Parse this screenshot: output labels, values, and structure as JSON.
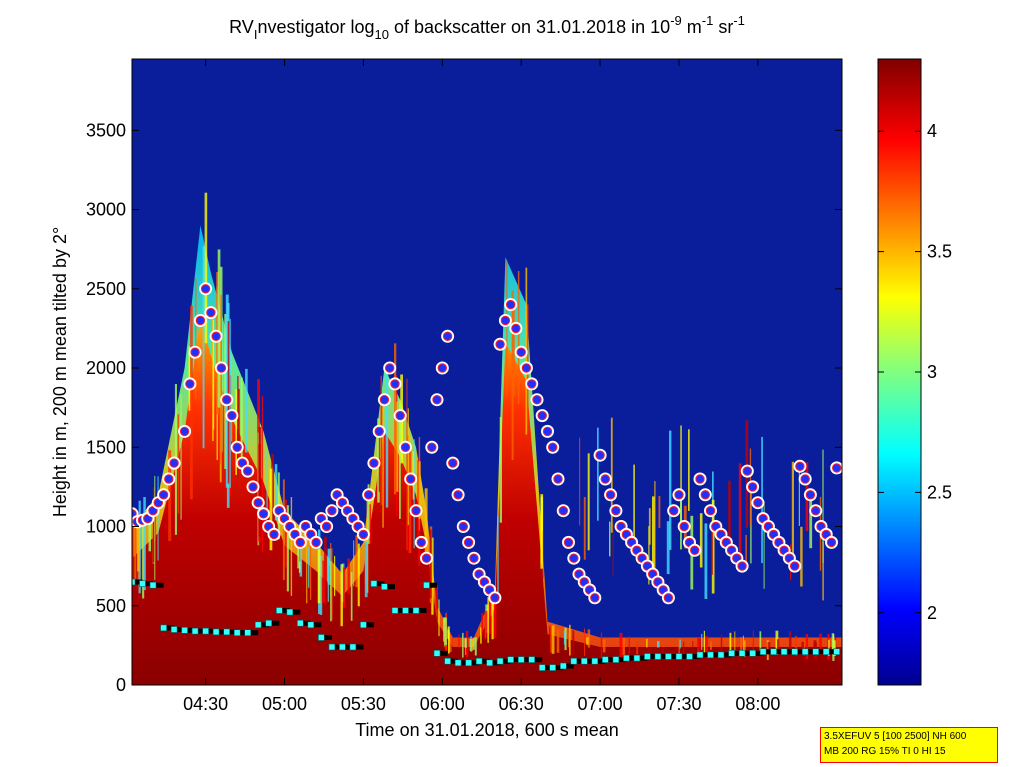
{
  "chart_data": {
    "type": "heatmap",
    "title": {
      "prefix": "RV",
      "prefix_sub": "I",
      "part1": "nvestigator log",
      "part1_sub": "10",
      "part2": " of backscatter on 31.01.2018 in 10",
      "exp1": "-9",
      "part3": " m",
      "exp2": "-1",
      "part4": " sr",
      "exp3": "-1"
    },
    "xlabel": "Time on 31.01.2018, 600 s mean",
    "ylabel": "Height in m, 200 m mean tilted by 2°",
    "x_ticks": [
      "04:30",
      "05:00",
      "05:30",
      "06:00",
      "06:30",
      "07:00",
      "07:30",
      "08:00"
    ],
    "x_tick_minutes": [
      270,
      300,
      330,
      360,
      390,
      420,
      450,
      480
    ],
    "xlim_minutes": [
      242,
      512
    ],
    "y_ticks": [
      0,
      500,
      1000,
      1500,
      2000,
      2500,
      3000,
      3500
    ],
    "ylim": [
      0,
      3950
    ],
    "colorbar": {
      "ticks": [
        2,
        2.5,
        3,
        3.5,
        4
      ],
      "tick_labels": [
        "2",
        "2.5",
        "3",
        "3.5",
        "4"
      ],
      "range": [
        1.7,
        4.3
      ],
      "colormap": "jet"
    },
    "background_color": "#0a1e9c",
    "cloud_base_points": [
      [
        242,
        1080
      ],
      [
        244,
        1030
      ],
      [
        246,
        1040
      ],
      [
        248,
        1050
      ],
      [
        250,
        1100
      ],
      [
        252,
        1150
      ],
      [
        254,
        1200
      ],
      [
        256,
        1300
      ],
      [
        258,
        1400
      ],
      [
        262,
        1600
      ],
      [
        264,
        1900
      ],
      [
        266,
        2100
      ],
      [
        268,
        2300
      ],
      [
        270,
        2500
      ],
      [
        272,
        2350
      ],
      [
        274,
        2200
      ],
      [
        276,
        2000
      ],
      [
        278,
        1800
      ],
      [
        280,
        1700
      ],
      [
        282,
        1500
      ],
      [
        284,
        1400
      ],
      [
        286,
        1350
      ],
      [
        288,
        1250
      ],
      [
        290,
        1150
      ],
      [
        292,
        1080
      ],
      [
        294,
        1000
      ],
      [
        296,
        950
      ],
      [
        298,
        1100
      ],
      [
        300,
        1050
      ],
      [
        302,
        1000
      ],
      [
        304,
        950
      ],
      [
        306,
        900
      ],
      [
        308,
        1000
      ],
      [
        310,
        950
      ],
      [
        312,
        900
      ],
      [
        314,
        1050
      ],
      [
        316,
        1000
      ],
      [
        318,
        1100
      ],
      [
        320,
        1200
      ],
      [
        322,
        1150
      ],
      [
        324,
        1100
      ],
      [
        326,
        1050
      ],
      [
        328,
        1000
      ],
      [
        330,
        950
      ],
      [
        332,
        1200
      ],
      [
        334,
        1400
      ],
      [
        336,
        1600
      ],
      [
        338,
        1800
      ],
      [
        340,
        2000
      ],
      [
        342,
        1900
      ],
      [
        344,
        1700
      ],
      [
        346,
        1500
      ],
      [
        348,
        1300
      ],
      [
        350,
        1100
      ],
      [
        352,
        900
      ],
      [
        354,
        800
      ],
      [
        356,
        1500
      ],
      [
        358,
        1800
      ],
      [
        360,
        2000
      ],
      [
        362,
        2200
      ],
      [
        364,
        1400
      ],
      [
        366,
        1200
      ],
      [
        368,
        1000
      ],
      [
        370,
        900
      ],
      [
        372,
        800
      ],
      [
        374,
        700
      ],
      [
        376,
        650
      ],
      [
        378,
        600
      ],
      [
        380,
        550
      ],
      [
        382,
        2150
      ],
      [
        384,
        2300
      ],
      [
        386,
        2400
      ],
      [
        388,
        2250
      ],
      [
        390,
        2100
      ],
      [
        392,
        2000
      ],
      [
        394,
        1900
      ],
      [
        396,
        1800
      ],
      [
        398,
        1700
      ],
      [
        400,
        1600
      ],
      [
        402,
        1500
      ],
      [
        404,
        1300
      ],
      [
        406,
        1100
      ],
      [
        408,
        900
      ],
      [
        410,
        800
      ],
      [
        412,
        700
      ],
      [
        414,
        650
      ],
      [
        416,
        600
      ],
      [
        418,
        550
      ],
      [
        420,
        1450
      ],
      [
        422,
        1300
      ],
      [
        424,
        1200
      ],
      [
        426,
        1100
      ],
      [
        428,
        1000
      ],
      [
        430,
        950
      ],
      [
        432,
        900
      ],
      [
        434,
        850
      ],
      [
        436,
        800
      ],
      [
        438,
        750
      ],
      [
        440,
        700
      ],
      [
        442,
        650
      ],
      [
        444,
        600
      ],
      [
        446,
        550
      ],
      [
        448,
        1100
      ],
      [
        450,
        1200
      ],
      [
        452,
        1000
      ],
      [
        454,
        900
      ],
      [
        456,
        850
      ],
      [
        458,
        1300
      ],
      [
        460,
        1200
      ],
      [
        462,
        1100
      ],
      [
        464,
        1000
      ],
      [
        466,
        950
      ],
      [
        468,
        900
      ],
      [
        470,
        850
      ],
      [
        472,
        800
      ],
      [
        474,
        750
      ],
      [
        476,
        1350
      ],
      [
        478,
        1250
      ],
      [
        480,
        1150
      ],
      [
        482,
        1050
      ],
      [
        484,
        1000
      ],
      [
        486,
        950
      ],
      [
        488,
        900
      ],
      [
        490,
        850
      ],
      [
        492,
        800
      ],
      [
        494,
        750
      ],
      [
        496,
        1380
      ],
      [
        498,
        1300
      ],
      [
        500,
        1200
      ],
      [
        502,
        1100
      ],
      [
        504,
        1000
      ],
      [
        506,
        950
      ],
      [
        508,
        900
      ],
      [
        510,
        1370
      ]
    ],
    "boundary_layer_points": [
      [
        242,
        650
      ],
      [
        246,
        640
      ],
      [
        250,
        630
      ],
      [
        254,
        360
      ],
      [
        258,
        350
      ],
      [
        262,
        345
      ],
      [
        266,
        340
      ],
      [
        270,
        340
      ],
      [
        274,
        335
      ],
      [
        278,
        335
      ],
      [
        282,
        330
      ],
      [
        286,
        330
      ],
      [
        290,
        380
      ],
      [
        294,
        390
      ],
      [
        298,
        470
      ],
      [
        302,
        460
      ],
      [
        306,
        390
      ],
      [
        310,
        380
      ],
      [
        314,
        300
      ],
      [
        318,
        240
      ],
      [
        322,
        240
      ],
      [
        326,
        240
      ],
      [
        330,
        380
      ],
      [
        334,
        640
      ],
      [
        338,
        620
      ],
      [
        342,
        470
      ],
      [
        346,
        470
      ],
      [
        350,
        470
      ],
      [
        354,
        630
      ],
      [
        358,
        200
      ],
      [
        362,
        150
      ],
      [
        366,
        140
      ],
      [
        370,
        140
      ],
      [
        374,
        150
      ],
      [
        378,
        140
      ],
      [
        382,
        150
      ],
      [
        386,
        160
      ],
      [
        390,
        160
      ],
      [
        394,
        160
      ],
      [
        398,
        110
      ],
      [
        402,
        110
      ],
      [
        406,
        120
      ],
      [
        410,
        150
      ],
      [
        414,
        150
      ],
      [
        418,
        150
      ],
      [
        422,
        160
      ],
      [
        426,
        160
      ],
      [
        430,
        170
      ],
      [
        434,
        170
      ],
      [
        438,
        180
      ],
      [
        442,
        180
      ],
      [
        446,
        180
      ],
      [
        450,
        180
      ],
      [
        454,
        180
      ],
      [
        458,
        190
      ],
      [
        462,
        190
      ],
      [
        466,
        190
      ],
      [
        470,
        200
      ],
      [
        474,
        200
      ],
      [
        478,
        200
      ],
      [
        482,
        210
      ],
      [
        486,
        210
      ],
      [
        490,
        210
      ],
      [
        494,
        210
      ],
      [
        498,
        210
      ],
      [
        502,
        210
      ],
      [
        506,
        210
      ],
      [
        510,
        210
      ]
    ]
  },
  "info_box": {
    "line1": "3.5XEFUV 5 [100 2500] NH 600",
    "line2": "MB 200 RG 15% TI 0 HI 15"
  }
}
